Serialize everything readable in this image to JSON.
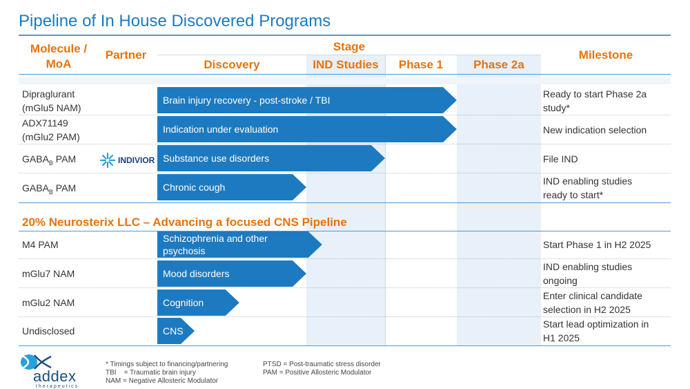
{
  "title": "Pipeline of In House Discovered Programs",
  "header": {
    "molecule": "Molecule /\nMoA",
    "partner": "Partner",
    "stage": "Stage",
    "discovery": "Discovery",
    "ind": "IND Studies",
    "phase1": "Phase 1",
    "phase2a": "Phase 2a",
    "milestone": "Milestone"
  },
  "programs": [
    {
      "molecule": "Dipraglurant\n(mGlu5 NAM)",
      "indication": "Brain injury recovery - post-stroke / TBI",
      "milestone": "Ready to start Phase 2a\nstudy*",
      "progress_stage": 3
    },
    {
      "molecule": "ADX71149\n(mGlu2 PAM)",
      "indication": "Indication under evaluation",
      "milestone": "New indication selection",
      "progress_stage": 3
    },
    {
      "molecule_main": "GABA",
      "molecule_sub": "B",
      "molecule_suffix": " PAM",
      "partner": "INDIVIOR",
      "indication": "Substance use disorders",
      "milestone": "File IND",
      "progress_stage": 2
    },
    {
      "molecule_main": "GABA",
      "molecule_sub": "B",
      "molecule_suffix": " PAM",
      "indication": "Chronic cough",
      "milestone": "IND enabling studies\nready to start*",
      "progress_stage": 1
    }
  ],
  "section2_title": "20%  Neurosterix LLC – Advancing a focused CNS Pipeline",
  "neurosterix": [
    {
      "molecule": "M4 PAM",
      "indication": "Schizophrenia and other\npsychosis",
      "milestone": "Start Phase 1 in H2 2025",
      "progress_stage": 1.2
    },
    {
      "molecule": "mGlu7 NAM",
      "indication": "Mood disorders",
      "milestone": "IND enabling studies\nongoing",
      "progress_stage": 1
    },
    {
      "molecule": "mGlu2 NAM",
      "indication": "Cognition",
      "milestone": "Enter clinical candidate\nselection in H2 2025",
      "progress_stage": 0.55
    },
    {
      "molecule": "Undisclosed",
      "indication": "CNS",
      "milestone": "Start lead optimization in\nH1 2025",
      "progress_stage": 0.25
    }
  ],
  "footnotes": {
    "left": "* Timings subject to financing/partnering\nTBI    = Traumatic brain injury\nNAM = Negative Allosteric Modulator",
    "right": "PTSD = Post-traumatic stress disorder\nPAM = Positive Allosteric Modulator"
  },
  "logo": {
    "word": "addex",
    "sub": "therapeutics"
  },
  "colors": {
    "accent": "#1d7ac0",
    "orange": "#e8730c",
    "band": "#e8f0f9"
  }
}
